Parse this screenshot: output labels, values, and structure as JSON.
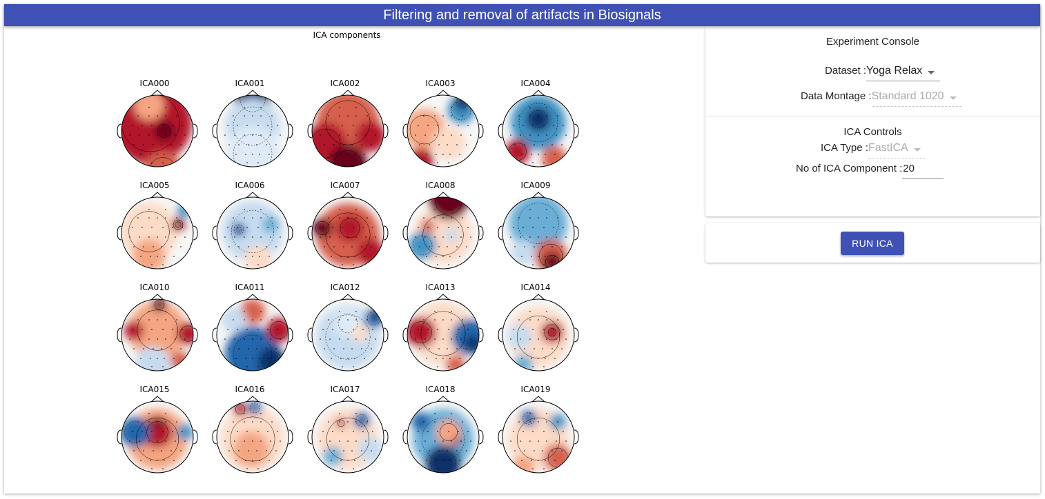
{
  "header": {
    "title": "Filtering and removal of artifacts in Biosignals"
  },
  "figure": {
    "title": "ICA components",
    "components": [
      {
        "label": "ICA000",
        "pattern": [
          [
            "#b2182b",
            42,
            40,
            60
          ],
          [
            "#67001f",
            62,
            52,
            14
          ],
          [
            "#d6604d",
            60,
            110,
            28
          ],
          [
            "#f4a582",
            40,
            15,
            22
          ]
        ]
      },
      {
        "label": "ICA001",
        "pattern": [
          [
            "#08306b",
            52,
            6,
            26
          ],
          [
            "#c6dbef",
            52,
            45,
            40
          ],
          [
            "#deebf7",
            52,
            85,
            40
          ]
        ]
      },
      {
        "label": "ICA002",
        "pattern": [
          [
            "#d6604d",
            52,
            40,
            46
          ],
          [
            "#b2182b",
            20,
            70,
            30
          ],
          [
            "#67001f",
            52,
            100,
            28
          ],
          [
            "#b2182b",
            85,
            60,
            22
          ]
        ]
      },
      {
        "label": "ICA003",
        "pattern": [
          [
            "#f4a582",
            25,
            50,
            30
          ],
          [
            "#4393c3",
            78,
            22,
            20
          ],
          [
            "#08306b",
            80,
            10,
            12
          ],
          [
            "#b2182b",
            20,
            95,
            18
          ],
          [
            "#fddbc7",
            60,
            70,
            24
          ]
        ]
      },
      {
        "label": "ICA004",
        "pattern": [
          [
            "#4393c3",
            52,
            40,
            40
          ],
          [
            "#08306b",
            52,
            35,
            18
          ],
          [
            "#b2182b",
            22,
            82,
            18
          ],
          [
            "#d6604d",
            75,
            92,
            18
          ]
        ]
      },
      {
        "label": "ICA005",
        "pattern": [
          [
            "#fddbc7",
            40,
            50,
            42
          ],
          [
            "#b2182b",
            82,
            40,
            10
          ],
          [
            "#67001f",
            82,
            40,
            6
          ],
          [
            "#4393c3",
            90,
            20,
            10
          ],
          [
            "#f4a582",
            40,
            85,
            24
          ]
        ]
      },
      {
        "label": "ICA006",
        "pattern": [
          [
            "#c6dbef",
            52,
            50,
            44
          ],
          [
            "#2166ac",
            32,
            47,
            10
          ],
          [
            "#08306b",
            32,
            47,
            5
          ],
          [
            "#fddbc7",
            60,
            90,
            20
          ],
          [
            "#6baed6",
            78,
            40,
            12
          ]
        ]
      },
      {
        "label": "ICA007",
        "pattern": [
          [
            "#d6604d",
            52,
            55,
            46
          ],
          [
            "#b2182b",
            55,
            45,
            20
          ],
          [
            "#67001f",
            15,
            45,
            14
          ],
          [
            "#b2182b",
            85,
            80,
            20
          ]
        ]
      },
      {
        "label": "ICA008",
        "pattern": [
          [
            "#fddbc7",
            52,
            55,
            42
          ],
          [
            "#67001f",
            60,
            5,
            28
          ],
          [
            "#4393c3",
            22,
            70,
            20
          ],
          [
            "#d6604d",
            30,
            42,
            10
          ],
          [
            "#c6dbef",
            64,
            55,
            10
          ]
        ]
      },
      {
        "label": "ICA009",
        "pattern": [
          [
            "#6baed6",
            52,
            38,
            42
          ],
          [
            "#d6604d",
            70,
            85,
            24
          ],
          [
            "#67001f",
            72,
            94,
            14
          ],
          [
            "#c6dbef",
            30,
            80,
            18
          ]
        ]
      },
      {
        "label": "ICA010",
        "pattern": [
          [
            "#f4a582",
            52,
            45,
            42
          ],
          [
            "#b2182b",
            96,
            50,
            16
          ],
          [
            "#67001f",
            55,
            8,
            10
          ],
          [
            "#b2182b",
            18,
            46,
            14
          ],
          [
            "#c6dbef",
            45,
            95,
            26
          ],
          [
            "#d6604d",
            85,
            90,
            14
          ]
        ]
      },
      {
        "label": "ICA011",
        "pattern": [
          [
            "#2166ac",
            52,
            80,
            40
          ],
          [
            "#08306b",
            80,
            90,
            20
          ],
          [
            "#b2182b",
            90,
            45,
            18
          ],
          [
            "#d6604d",
            52,
            18,
            18
          ],
          [
            "#c6dbef",
            25,
            30,
            18
          ]
        ]
      },
      {
        "label": "ICA012",
        "pattern": [
          [
            "#c6dbef",
            52,
            55,
            46
          ],
          [
            "#deebf7",
            52,
            35,
            20
          ],
          [
            "#2166ac",
            90,
            28,
            14
          ],
          [
            "#08306b",
            92,
            22,
            8
          ],
          [
            "#fddbc7",
            70,
            50,
            12
          ]
        ]
      },
      {
        "label": "ICA013",
        "pattern": [
          [
            "#fddbc7",
            52,
            50,
            46
          ],
          [
            "#b2182b",
            20,
            48,
            22
          ],
          [
            "#2166ac",
            90,
            55,
            26
          ],
          [
            "#08306b",
            95,
            65,
            12
          ],
          [
            "#d6604d",
            70,
            95,
            14
          ]
        ]
      },
      {
        "label": "ICA014",
        "pattern": [
          [
            "#fddbc7",
            52,
            55,
            44
          ],
          [
            "#67001f",
            72,
            48,
            8
          ],
          [
            "#b2182b",
            72,
            48,
            16
          ],
          [
            "#c6dbef",
            25,
            55,
            18
          ],
          [
            "#6baed6",
            30,
            95,
            14
          ]
        ]
      },
      {
        "label": "ICA015",
        "pattern": [
          [
            "#f4a582",
            52,
            55,
            44
          ],
          [
            "#b2182b",
            52,
            45,
            22
          ],
          [
            "#2166ac",
            20,
            45,
            22
          ],
          [
            "#4393c3",
            92,
            45,
            12
          ],
          [
            "#67001f",
            52,
            30,
            8
          ]
        ]
      },
      {
        "label": "ICA016",
        "pattern": [
          [
            "#fddbc7",
            52,
            55,
            46
          ],
          [
            "#b2182b",
            34,
            12,
            10
          ],
          [
            "#2166ac",
            55,
            10,
            10
          ],
          [
            "#f4a582",
            50,
            70,
            26
          ]
        ]
      },
      {
        "label": "ICA017",
        "pattern": [
          [
            "#fddbc7",
            52,
            55,
            44
          ],
          [
            "#b2182b",
            42,
            32,
            7
          ],
          [
            "#2166ac",
            72,
            28,
            12
          ],
          [
            "#6baed6",
            30,
            80,
            14
          ],
          [
            "#c6dbef",
            85,
            70,
            18
          ]
        ]
      },
      {
        "label": "ICA018",
        "pattern": [
          [
            "#6baed6",
            52,
            55,
            44
          ],
          [
            "#08306b",
            52,
            90,
            26
          ],
          [
            "#f4a582",
            60,
            45,
            18
          ],
          [
            "#2166ac",
            20,
            30,
            14
          ],
          [
            "#b2182b",
            72,
            58,
            6
          ]
        ]
      },
      {
        "label": "ICA019",
        "pattern": [
          [
            "#fddbc7",
            52,
            55,
            44
          ],
          [
            "#d6604d",
            80,
            82,
            20
          ],
          [
            "#2166ac",
            38,
            25,
            12
          ],
          [
            "#4393c3",
            80,
            30,
            12
          ],
          [
            "#f4a582",
            30,
            95,
            16
          ]
        ]
      }
    ]
  },
  "console": {
    "title": "Experiment Console",
    "dataset_label": "Dataset :",
    "dataset_value": "Yoga Relax",
    "montage_label": "Data Montage :",
    "montage_value": "Standard 1020",
    "ica_title": "ICA Controls",
    "ica_type_label": "ICA Type :",
    "ica_type_value": "FastICA",
    "num_components_label": "No of ICA Component :",
    "num_components_value": "20"
  },
  "run_button": {
    "label": "RUN ICA"
  },
  "colors": {
    "accent": "#3f51b5"
  }
}
